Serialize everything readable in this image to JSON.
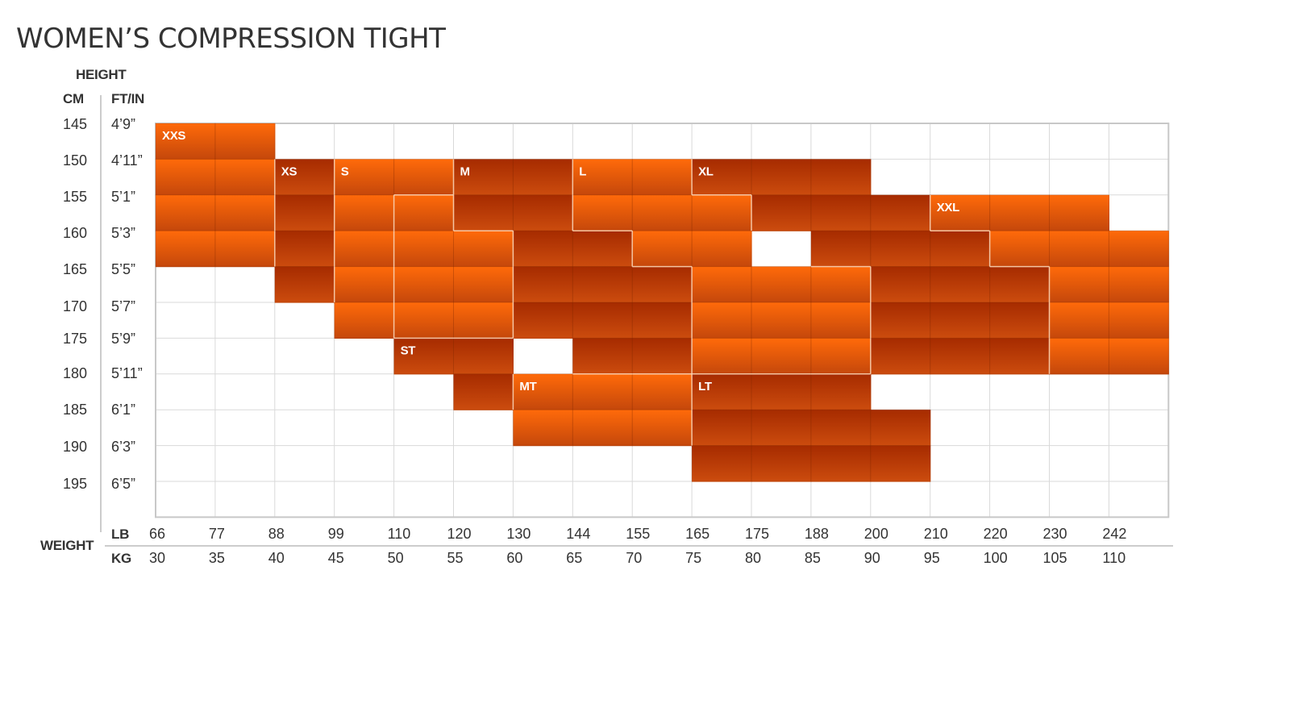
{
  "chart_data": {
    "type": "heatmap",
    "title": "WOMEN’S COMPRESSION TIGHT",
    "height_axis": {
      "label": "HEIGHT",
      "cm_label": "CM",
      "ftin_label": "FT/IN",
      "cm_ticks": [
        "145",
        "150",
        "155",
        "160",
        "165",
        "170",
        "175",
        "180",
        "185",
        "190",
        "195"
      ],
      "ftin_ticks": [
        "4’9”",
        "4’11”",
        "5’1”",
        "5’3”",
        "5’5”",
        "5’7”",
        "5’9”",
        "5’11”",
        "6’1”",
        "6’3”",
        "6’5”"
      ]
    },
    "weight_axis": {
      "label": "WEIGHT",
      "lb_label": "LB",
      "kg_label": "KG",
      "lb_ticks": [
        "66",
        "77",
        "88",
        "99",
        "110",
        "120",
        "130",
        "144",
        "155",
        "165",
        "175",
        "188",
        "200",
        "210",
        "220",
        "230",
        "242"
      ],
      "kg_ticks": [
        "30",
        "35",
        "40",
        "45",
        "50",
        "55",
        "60",
        "65",
        "70",
        "75",
        "80",
        "85",
        "90",
        "95",
        "100",
        "105",
        "110"
      ]
    },
    "sizes": [
      {
        "size": "XXS",
        "color": "orange",
        "cells": [
          [
            145,
            30
          ],
          [
            145,
            35
          ],
          [
            150,
            30
          ],
          [
            155,
            30
          ],
          [
            160,
            30
          ],
          [
            150,
            35
          ],
          [
            155,
            35
          ],
          [
            160,
            35
          ]
        ]
      },
      {
        "size": "XS",
        "color": "dark",
        "cells": [
          [
            150,
            40
          ],
          [
            155,
            40
          ],
          [
            160,
            40
          ],
          [
            165,
            40
          ]
        ]
      },
      {
        "size": "S",
        "color": "orange",
        "cells": [
          [
            150,
            45
          ],
          [
            150,
            50
          ],
          [
            155,
            45
          ],
          [
            160,
            45
          ],
          [
            165,
            45
          ],
          [
            170,
            45
          ]
        ]
      },
      {
        "size": "M",
        "color": "dark",
        "cells": [
          [
            150,
            55
          ],
          [
            150,
            60
          ],
          [
            155,
            55
          ],
          [
            155,
            60
          ],
          [
            160,
            60
          ],
          [
            165,
            60
          ],
          [
            170,
            60
          ],
          [
            160,
            65
          ],
          [
            165,
            65
          ],
          [
            170,
            65
          ],
          [
            165,
            70
          ],
          [
            170,
            70
          ],
          [
            175,
            65
          ],
          [
            175,
            70
          ]
        ]
      },
      {
        "size": "L",
        "color": "orange",
        "cells": [
          [
            150,
            65
          ],
          [
            150,
            70
          ],
          [
            155,
            65
          ],
          [
            155,
            70
          ],
          [
            160,
            70
          ],
          [
            155,
            75
          ],
          [
            160,
            75
          ],
          [
            165,
            75
          ],
          [
            170,
            75
          ],
          [
            175,
            75
          ],
          [
            165,
            80
          ],
          [
            170,
            80
          ],
          [
            175,
            80
          ],
          [
            165,
            85
          ],
          [
            170,
            85
          ],
          [
            175,
            85
          ],
          [
            155,
            50
          ],
          [
            160,
            50
          ],
          [
            165,
            50
          ],
          [
            170,
            50
          ],
          [
            160,
            55
          ],
          [
            165,
            55
          ],
          [
            170,
            55
          ]
        ]
      },
      {
        "size": "XL",
        "color": "dark",
        "cells": [
          [
            150,
            75
          ],
          [
            150,
            80
          ],
          [
            150,
            85
          ],
          [
            155,
            80
          ],
          [
            155,
            85
          ],
          [
            155,
            90
          ],
          [
            160,
            85
          ],
          [
            160,
            90
          ],
          [
            165,
            90
          ],
          [
            170,
            90
          ],
          [
            175,
            90
          ],
          [
            160,
            95
          ],
          [
            165,
            95
          ],
          [
            170,
            95
          ],
          [
            175,
            95
          ],
          [
            165,
            100
          ],
          [
            170,
            100
          ],
          [
            175,
            100
          ]
        ]
      },
      {
        "size": "XXL",
        "color": "orange",
        "cells": [
          [
            155,
            95
          ],
          [
            155,
            100
          ],
          [
            155,
            105
          ],
          [
            160,
            100
          ],
          [
            160,
            105
          ],
          [
            160,
            110
          ],
          [
            165,
            105
          ],
          [
            165,
            110
          ],
          [
            170,
            105
          ],
          [
            170,
            110
          ],
          [
            175,
            105
          ],
          [
            175,
            110
          ]
        ]
      },
      {
        "size": "ST",
        "color": "dark",
        "cells": [
          [
            175,
            50
          ],
          [
            175,
            55
          ],
          [
            180,
            55
          ]
        ]
      },
      {
        "size": "MT",
        "color": "orange",
        "cells": [
          [
            180,
            60
          ],
          [
            180,
            65
          ],
          [
            180,
            70
          ],
          [
            185,
            60
          ],
          [
            185,
            65
          ],
          [
            185,
            70
          ]
        ]
      },
      {
        "size": "LT",
        "color": "dark",
        "cells": [
          [
            180,
            75
          ],
          [
            180,
            80
          ],
          [
            180,
            85
          ],
          [
            185,
            75
          ],
          [
            185,
            80
          ],
          [
            185,
            85
          ],
          [
            185,
            90
          ],
          [
            190,
            75
          ],
          [
            190,
            80
          ],
          [
            190,
            85
          ],
          [
            190,
            90
          ]
        ]
      }
    ]
  },
  "colors": {
    "orange_top": "#ff6a0a",
    "orange_bottom": "#c0460b",
    "dark_top": "#a82c00",
    "dark_bottom": "#c84a0e",
    "grid": "#d9d9d9",
    "border": "#c8c8c8",
    "text": "#333333"
  }
}
